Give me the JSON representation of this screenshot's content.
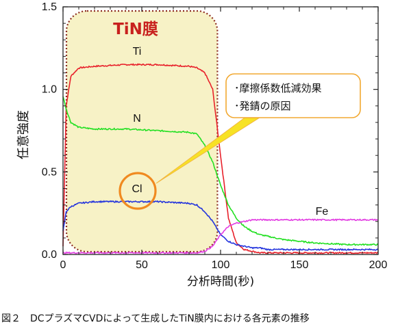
{
  "chart_data": {
    "type": "line",
    "xlabel": "分析時間(秒)",
    "ylabel": "任意強度",
    "xlim": [
      0,
      200
    ],
    "ylim": [
      0,
      1.5
    ],
    "xticks": [
      "0",
      "50",
      "100",
      "150",
      "200"
    ],
    "yticks": [
      "0.0",
      "0.5",
      "1.0",
      "1.5"
    ],
    "grid": false,
    "x": [
      0,
      2,
      5,
      10,
      20,
      40,
      60,
      80,
      85,
      90,
      95,
      100,
      105,
      110,
      115,
      120,
      125,
      130,
      140,
      150,
      160,
      180,
      200
    ],
    "series": [
      {
        "name": "Ti",
        "color": "#e8202a",
        "values": [
          0.05,
          0.9,
          1.08,
          1.13,
          1.14,
          1.15,
          1.15,
          1.14,
          1.13,
          1.1,
          1.0,
          0.6,
          0.22,
          0.07,
          0.03,
          0.02,
          0.01,
          0.01,
          0.01,
          0.01,
          0.01,
          0.01,
          0.01
        ]
      },
      {
        "name": "N",
        "color": "#22e022",
        "values": [
          0.96,
          0.88,
          0.8,
          0.77,
          0.76,
          0.76,
          0.75,
          0.74,
          0.73,
          0.66,
          0.56,
          0.42,
          0.3,
          0.22,
          0.17,
          0.14,
          0.12,
          0.11,
          0.09,
          0.08,
          0.07,
          0.06,
          0.06
        ]
      },
      {
        "name": "Cl",
        "color": "#2233dd",
        "values": [
          0.14,
          0.26,
          0.29,
          0.31,
          0.32,
          0.32,
          0.32,
          0.31,
          0.3,
          0.26,
          0.2,
          0.12,
          0.08,
          0.06,
          0.05,
          0.04,
          0.04,
          0.03,
          0.03,
          0.03,
          0.03,
          0.03,
          0.03
        ]
      },
      {
        "name": "Fe",
        "color": "#e23ce2",
        "values": [
          0.01,
          0.01,
          0.01,
          0.01,
          0.01,
          0.01,
          0.01,
          0.01,
          0.01,
          0.02,
          0.05,
          0.12,
          0.17,
          0.19,
          0.2,
          0.21,
          0.21,
          0.21,
          0.21,
          0.21,
          0.21,
          0.21,
          0.21
        ]
      }
    ],
    "region": {
      "label": "TiN膜",
      "x_range": [
        0,
        98
      ]
    },
    "highlight": {
      "series": "Cl",
      "x": 48
    },
    "callout": {
      "lines": [
        "･摩擦係数低減効果",
        "･発錆の原因"
      ]
    },
    "caption": "図２　DCプラズマCVDによって生成したTiN膜内における各元素の推移"
  }
}
